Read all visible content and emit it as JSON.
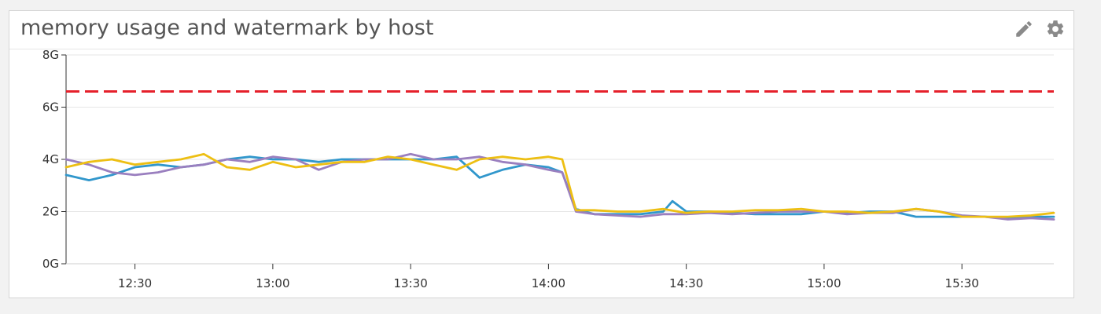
{
  "panel": {
    "title": "memory usage and watermark by host",
    "edit_icon": "pencil-icon",
    "settings_icon": "gear-icon"
  },
  "chart_data": {
    "type": "line",
    "title": "memory usage and watermark by host",
    "xlabel": "",
    "ylabel": "",
    "x_range": [
      "12:15",
      "15:50"
    ],
    "y_range": [
      0,
      8
    ],
    "x_ticks": [
      "12:30",
      "13:00",
      "13:30",
      "14:00",
      "14:30",
      "15:00",
      "15:30"
    ],
    "y_ticks": [
      "0G",
      "2G",
      "4G",
      "6G",
      "8G"
    ],
    "grid": true,
    "legend": "none",
    "watermark": {
      "value": 6.6,
      "color": "#e5202b",
      "style": "dashed"
    },
    "series": [
      {
        "color": "#3197cc",
        "points": [
          [
            "12:15",
            3.4
          ],
          [
            "12:20",
            3.2
          ],
          [
            "12:25",
            3.4
          ],
          [
            "12:30",
            3.7
          ],
          [
            "12:35",
            3.8
          ],
          [
            "12:40",
            3.7
          ],
          [
            "12:45",
            3.8
          ],
          [
            "12:50",
            4.0
          ],
          [
            "12:55",
            4.1
          ],
          [
            "13:00",
            4.0
          ],
          [
            "13:05",
            4.0
          ],
          [
            "13:10",
            3.9
          ],
          [
            "13:15",
            4.0
          ],
          [
            "13:20",
            4.0
          ],
          [
            "13:25",
            4.0
          ],
          [
            "13:30",
            4.0
          ],
          [
            "13:35",
            4.0
          ],
          [
            "13:40",
            4.1
          ],
          [
            "13:45",
            3.3
          ],
          [
            "13:50",
            3.6
          ],
          [
            "13:55",
            3.8
          ],
          [
            "14:00",
            3.7
          ],
          [
            "14:03",
            3.5
          ],
          [
            "14:06",
            2.1
          ],
          [
            "14:10",
            1.9
          ],
          [
            "14:15",
            1.9
          ],
          [
            "14:20",
            1.9
          ],
          [
            "14:25",
            2.0
          ],
          [
            "14:27",
            2.4
          ],
          [
            "14:30",
            2.0
          ],
          [
            "14:35",
            2.0
          ],
          [
            "14:40",
            1.95
          ],
          [
            "14:45",
            1.9
          ],
          [
            "14:50",
            1.9
          ],
          [
            "14:55",
            1.9
          ],
          [
            "15:00",
            2.0
          ],
          [
            "15:05",
            1.95
          ],
          [
            "15:10",
            2.0
          ],
          [
            "15:15",
            2.0
          ],
          [
            "15:20",
            1.8
          ],
          [
            "15:25",
            1.8
          ],
          [
            "15:30",
            1.8
          ],
          [
            "15:35",
            1.8
          ],
          [
            "15:40",
            1.75
          ],
          [
            "15:45",
            1.8
          ],
          [
            "15:50",
            1.8
          ]
        ]
      },
      {
        "color": "#9a7fbf",
        "points": [
          [
            "12:15",
            4.0
          ],
          [
            "12:20",
            3.8
          ],
          [
            "12:25",
            3.5
          ],
          [
            "12:30",
            3.4
          ],
          [
            "12:35",
            3.5
          ],
          [
            "12:40",
            3.7
          ],
          [
            "12:45",
            3.8
          ],
          [
            "12:50",
            4.0
          ],
          [
            "12:55",
            3.9
          ],
          [
            "13:00",
            4.1
          ],
          [
            "13:05",
            4.0
          ],
          [
            "13:10",
            3.6
          ],
          [
            "13:15",
            3.9
          ],
          [
            "13:20",
            4.0
          ],
          [
            "13:25",
            4.0
          ],
          [
            "13:30",
            4.2
          ],
          [
            "13:35",
            4.0
          ],
          [
            "13:40",
            4.0
          ],
          [
            "13:45",
            4.1
          ],
          [
            "13:50",
            3.9
          ],
          [
            "13:55",
            3.8
          ],
          [
            "14:00",
            3.6
          ],
          [
            "14:03",
            3.5
          ],
          [
            "14:06",
            2.0
          ],
          [
            "14:10",
            1.9
          ],
          [
            "14:15",
            1.85
          ],
          [
            "14:20",
            1.8
          ],
          [
            "14:25",
            1.9
          ],
          [
            "14:30",
            1.9
          ],
          [
            "14:35",
            1.95
          ],
          [
            "14:40",
            1.9
          ],
          [
            "14:45",
            1.95
          ],
          [
            "14:50",
            2.0
          ],
          [
            "14:55",
            2.0
          ],
          [
            "15:00",
            2.0
          ],
          [
            "15:05",
            1.9
          ],
          [
            "15:10",
            1.95
          ],
          [
            "15:15",
            1.95
          ],
          [
            "15:20",
            2.1
          ],
          [
            "15:25",
            2.0
          ],
          [
            "15:30",
            1.85
          ],
          [
            "15:35",
            1.8
          ],
          [
            "15:40",
            1.7
          ],
          [
            "15:45",
            1.75
          ],
          [
            "15:50",
            1.7
          ]
        ]
      },
      {
        "color": "#edbf13",
        "points": [
          [
            "12:15",
            3.7
          ],
          [
            "12:20",
            3.9
          ],
          [
            "12:25",
            4.0
          ],
          [
            "12:30",
            3.8
          ],
          [
            "12:35",
            3.9
          ],
          [
            "12:40",
            4.0
          ],
          [
            "12:45",
            4.2
          ],
          [
            "12:50",
            3.7
          ],
          [
            "12:55",
            3.6
          ],
          [
            "13:00",
            3.9
          ],
          [
            "13:05",
            3.7
          ],
          [
            "13:10",
            3.8
          ],
          [
            "13:15",
            3.9
          ],
          [
            "13:20",
            3.9
          ],
          [
            "13:25",
            4.1
          ],
          [
            "13:30",
            4.0
          ],
          [
            "13:35",
            3.8
          ],
          [
            "13:40",
            3.6
          ],
          [
            "13:45",
            4.0
          ],
          [
            "13:50",
            4.1
          ],
          [
            "13:55",
            4.0
          ],
          [
            "14:00",
            4.1
          ],
          [
            "14:03",
            4.0
          ],
          [
            "14:06",
            2.05
          ],
          [
            "14:10",
            2.05
          ],
          [
            "14:15",
            2.0
          ],
          [
            "14:20",
            2.0
          ],
          [
            "14:25",
            2.1
          ],
          [
            "14:30",
            1.95
          ],
          [
            "14:35",
            2.0
          ],
          [
            "14:40",
            2.0
          ],
          [
            "14:45",
            2.05
          ],
          [
            "14:50",
            2.05
          ],
          [
            "14:55",
            2.1
          ],
          [
            "15:00",
            2.0
          ],
          [
            "15:05",
            2.0
          ],
          [
            "15:10",
            1.95
          ],
          [
            "15:15",
            2.0
          ],
          [
            "15:20",
            2.1
          ],
          [
            "15:25",
            2.0
          ],
          [
            "15:30",
            1.8
          ],
          [
            "15:35",
            1.8
          ],
          [
            "15:40",
            1.8
          ],
          [
            "15:45",
            1.85
          ],
          [
            "15:50",
            1.95
          ]
        ]
      }
    ]
  }
}
